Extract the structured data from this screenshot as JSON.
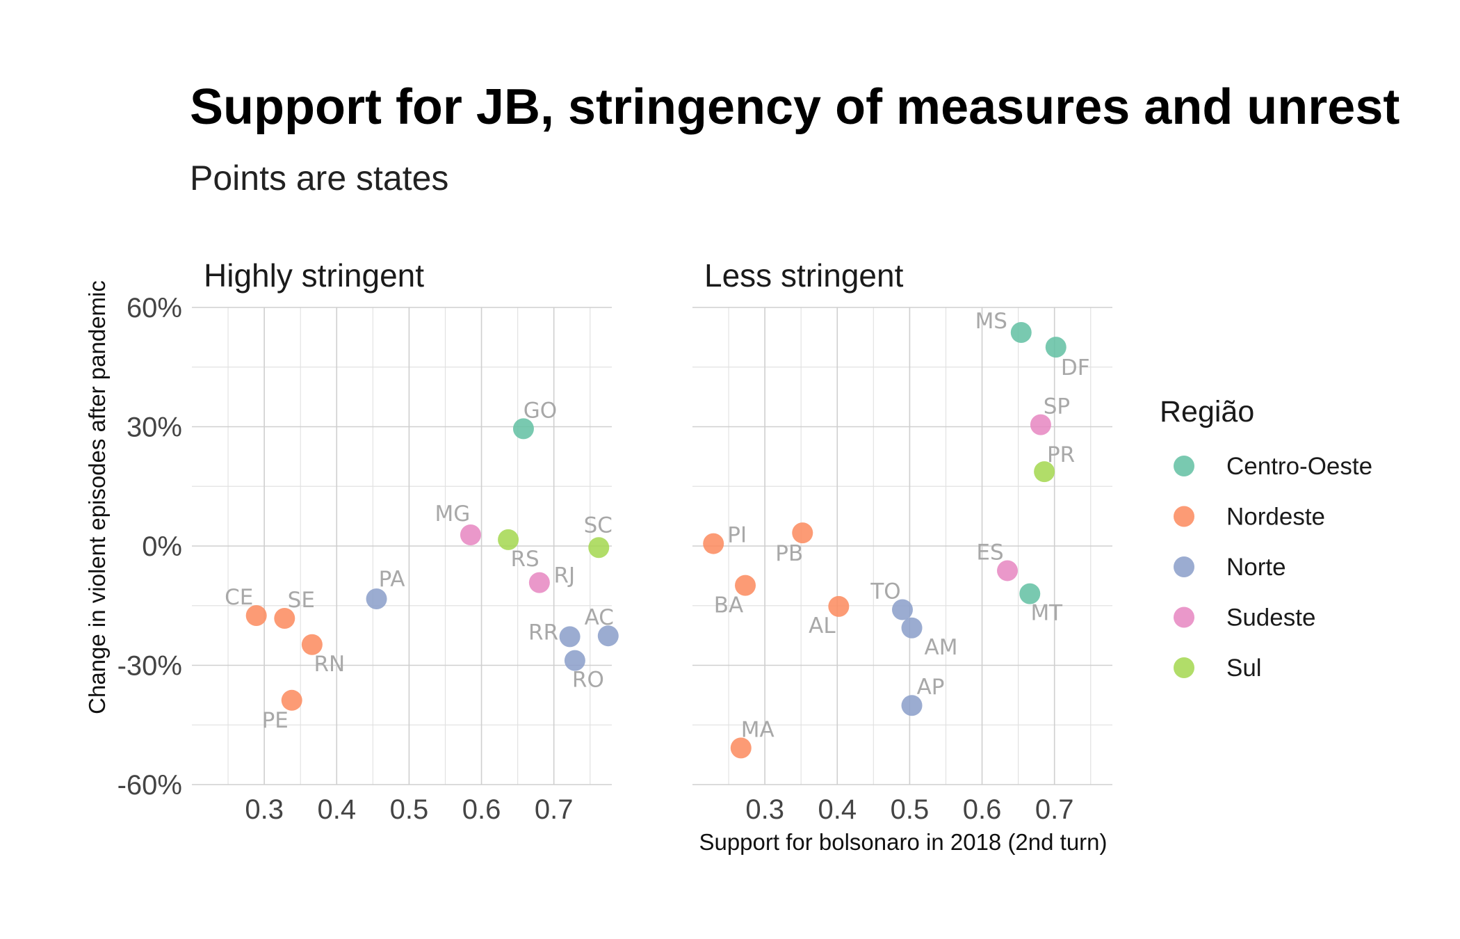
{
  "chart_data": {
    "type": "scatter",
    "title": "Support for JB, stringency of measures and unrest",
    "subtitle": "Points are states",
    "xlabel": "Support for bolsonaro in 2018 (2nd turn)",
    "ylabel": "Change in violent episodes after pandemic",
    "xlim": [
      0.2,
      0.78
    ],
    "ylim": [
      -0.6,
      0.6
    ],
    "x_ticks": [
      0.3,
      0.4,
      0.5,
      0.6,
      0.7
    ],
    "x_tick_labels": [
      "0.3",
      "0.4",
      "0.5",
      "0.6",
      "0.7"
    ],
    "y_ticks": [
      0.6,
      0.3,
      0.0,
      -0.3,
      -0.6
    ],
    "y_tick_labels": [
      "60%",
      "30%",
      "0%",
      "-30%",
      "-60%"
    ],
    "grid": true,
    "legend": {
      "title": "Região",
      "position": "right",
      "entries": [
        {
          "name": "Centro-Oeste",
          "color": "#66c2a5"
        },
        {
          "name": "Nordeste",
          "color": "#fc8d62"
        },
        {
          "name": "Norte",
          "color": "#8da0cb"
        },
        {
          "name": "Sudeste",
          "color": "#e78ac3"
        },
        {
          "name": "Sul",
          "color": "#a6d854"
        }
      ]
    },
    "panels": [
      {
        "label": "Highly stringent",
        "points": [
          {
            "state": "GO",
            "x": 0.658,
            "y": 0.295,
            "region": "Centro-Oeste"
          },
          {
            "state": "MG",
            "x": 0.585,
            "y": 0.028,
            "region": "Sudeste"
          },
          {
            "state": "RS",
            "x": 0.637,
            "y": 0.016,
            "region": "Sul"
          },
          {
            "state": "SC",
            "x": 0.762,
            "y": -0.004,
            "region": "Sul"
          },
          {
            "state": "RJ",
            "x": 0.68,
            "y": -0.092,
            "region": "Sudeste"
          },
          {
            "state": "PA",
            "x": 0.455,
            "y": -0.133,
            "region": "Norte"
          },
          {
            "state": "CE",
            "x": 0.289,
            "y": -0.175,
            "region": "Nordeste"
          },
          {
            "state": "SE",
            "x": 0.328,
            "y": -0.182,
            "region": "Nordeste"
          },
          {
            "state": "RN",
            "x": 0.366,
            "y": -0.248,
            "region": "Nordeste"
          },
          {
            "state": "RR",
            "x": 0.722,
            "y": -0.228,
            "region": "Norte"
          },
          {
            "state": "AC",
            "x": 0.775,
            "y": -0.226,
            "region": "Norte"
          },
          {
            "state": "RO",
            "x": 0.729,
            "y": -0.288,
            "region": "Norte"
          },
          {
            "state": "PE",
            "x": 0.338,
            "y": -0.388,
            "region": "Nordeste"
          }
        ]
      },
      {
        "label": "Less stringent",
        "points": [
          {
            "state": "MS",
            "x": 0.654,
            "y": 0.537,
            "region": "Centro-Oeste"
          },
          {
            "state": "DF",
            "x": 0.702,
            "y": 0.5,
            "region": "Centro-Oeste"
          },
          {
            "state": "SP",
            "x": 0.681,
            "y": 0.305,
            "region": "Sudeste"
          },
          {
            "state": "PR",
            "x": 0.686,
            "y": 0.187,
            "region": "Sul"
          },
          {
            "state": "PI",
            "x": 0.229,
            "y": 0.006,
            "region": "Nordeste"
          },
          {
            "state": "PB",
            "x": 0.352,
            "y": 0.033,
            "region": "Nordeste"
          },
          {
            "state": "ES",
            "x": 0.635,
            "y": -0.062,
            "region": "Sudeste"
          },
          {
            "state": "BA",
            "x": 0.273,
            "y": -0.099,
            "region": "Nordeste"
          },
          {
            "state": "MT",
            "x": 0.666,
            "y": -0.12,
            "region": "Centro-Oeste"
          },
          {
            "state": "AL",
            "x": 0.402,
            "y": -0.152,
            "region": "Nordeste"
          },
          {
            "state": "TO",
            "x": 0.49,
            "y": -0.16,
            "region": "Norte"
          },
          {
            "state": "AM",
            "x": 0.503,
            "y": -0.206,
            "region": "Norte"
          },
          {
            "state": "AP",
            "x": 0.503,
            "y": -0.401,
            "region": "Norte"
          },
          {
            "state": "MA",
            "x": 0.267,
            "y": -0.508,
            "region": "Nordeste"
          }
        ]
      }
    ]
  }
}
